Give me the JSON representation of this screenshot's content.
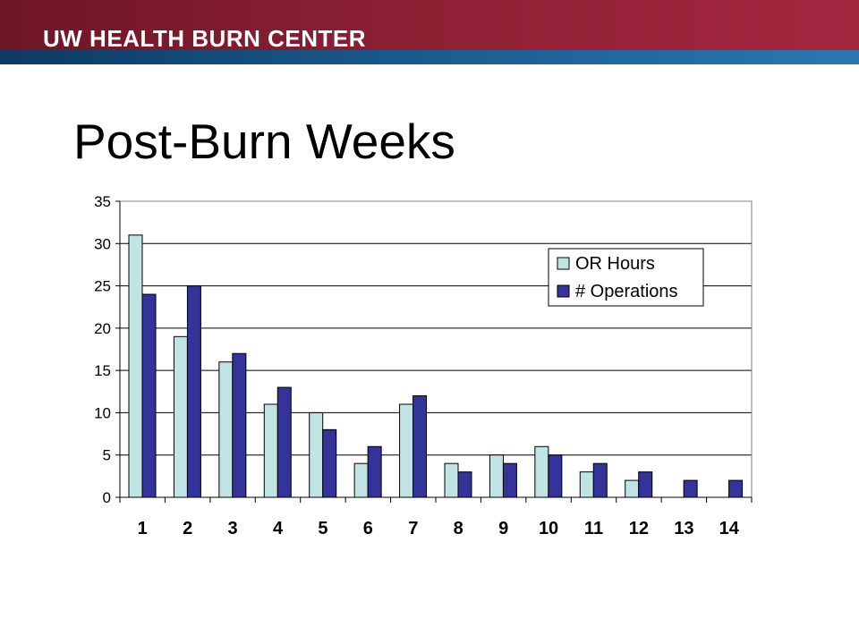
{
  "header": {
    "brand": "UW HEALTH BURN CENTER",
    "colors": {
      "crimson": "#8c1f33",
      "navy": "#1a5c8f"
    }
  },
  "slide": {
    "title": "Post-Burn Weeks"
  },
  "chart_data": {
    "type": "bar",
    "categories": [
      "1",
      "2",
      "3",
      "4",
      "5",
      "6",
      "7",
      "8",
      "9",
      "10",
      "11",
      "12",
      "13",
      "14"
    ],
    "series": [
      {
        "name": "OR Hours",
        "color": "#c0e3e3",
        "values": [
          31,
          19,
          16,
          11,
          10,
          4,
          11,
          4,
          5,
          6,
          3,
          2,
          0,
          0
        ]
      },
      {
        "name": "# Operations",
        "color": "#333399",
        "values": [
          24,
          25,
          17,
          13,
          8,
          6,
          12,
          3,
          4,
          5,
          4,
          3,
          2,
          2
        ]
      }
    ],
    "ylim": [
      0,
      35
    ],
    "yticks": [
      0,
      5,
      10,
      15,
      20,
      25,
      30,
      35
    ],
    "grid": true,
    "legend": "top-right",
    "title": "",
    "xlabel": "",
    "ylabel": ""
  }
}
